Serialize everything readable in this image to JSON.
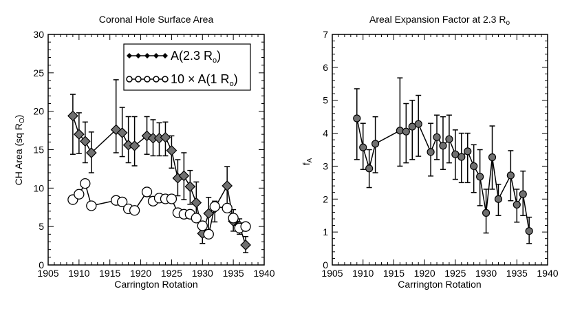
{
  "chart_data": [
    {
      "type": "line",
      "title": "Coronal Hole Surface Area",
      "xlabel": "Carrington Rotation",
      "ylabel_main": "CH Area (sq R",
      "ylabel_sub": "O",
      "ylabel_tail": ")",
      "xlim": [
        1905,
        1940
      ],
      "ylim": [
        0,
        30
      ],
      "xticks": [
        "1905",
        "1910",
        "1915",
        "1920",
        "1925",
        "1930",
        "1935",
        "1940"
      ],
      "yticks": [
        "0",
        "5",
        "10",
        "15",
        "20",
        "25",
        "30"
      ],
      "legend": {
        "position": "top-right",
        "entries": [
          {
            "main": "A(2.3 R",
            "sub": "o",
            "tail": ")"
          },
          {
            "main": "10 × A(1 R",
            "sub": "o",
            "tail": ")"
          }
        ]
      },
      "series": [
        {
          "name": "A(2.3 Ro)",
          "marker": "diamond",
          "points": [
            {
              "x": 1909,
              "y": 19.4,
              "lo": 14.4,
              "hi": 22.2
            },
            {
              "x": 1910,
              "y": 17.0,
              "lo": 14.5,
              "hi": 19.8
            },
            {
              "x": 1911,
              "y": 16.1,
              "lo": 13.3,
              "hi": 18.6
            },
            {
              "x": 1912,
              "y": 14.6,
              "lo": 12.0,
              "hi": 17.3
            },
            {
              "x": 1916,
              "y": 17.6,
              "lo": 14.6,
              "hi": 24.1
            },
            {
              "x": 1917,
              "y": 17.2,
              "lo": 14.1,
              "hi": 20.5
            },
            {
              "x": 1918,
              "y": 15.6,
              "lo": 13.3,
              "hi": 19.3
            },
            {
              "x": 1919,
              "y": 15.5,
              "lo": 12.9,
              "hi": 19.3
            },
            {
              "x": 1921,
              "y": 16.8,
              "lo": 14.4,
              "hi": 19.3
            },
            {
              "x": 1922,
              "y": 16.5,
              "lo": 14.2,
              "hi": 18.9
            },
            {
              "x": 1923,
              "y": 16.5,
              "lo": 14.2,
              "hi": 18.5
            },
            {
              "x": 1924,
              "y": 16.6,
              "lo": 14.2,
              "hi": 18.6
            },
            {
              "x": 1925,
              "y": 14.9,
              "lo": 12.6,
              "hi": 16.8
            },
            {
              "x": 1926,
              "y": 11.3,
              "lo": 9.0,
              "hi": 13.7
            },
            {
              "x": 1927,
              "y": 11.6,
              "lo": 8.5,
              "hi": 14.6
            },
            {
              "x": 1928,
              "y": 10.2,
              "lo": 7.9,
              "hi": 12.3
            },
            {
              "x": 1929,
              "y": 8.1,
              "lo": 5.6,
              "hi": 10.8
            },
            {
              "x": 1930,
              "y": 4.1,
              "lo": 2.8,
              "hi": 5.3
            },
            {
              "x": 1931,
              "y": 6.7,
              "lo": 4.2,
              "hi": 8.8
            },
            {
              "x": 1932,
              "y": 7.4,
              "lo": 5.6,
              "hi": 8.3
            },
            {
              "x": 1934,
              "y": 10.3,
              "lo": 7.9,
              "hi": 12.8
            },
            {
              "x": 1935,
              "y": 5.7,
              "lo": 4.4,
              "hi": 7.2
            },
            {
              "x": 1936,
              "y": 5.1,
              "lo": 4.0,
              "hi": 6.0
            },
            {
              "x": 1937,
              "y": 2.6,
              "lo": 1.6,
              "hi": 3.7
            }
          ]
        },
        {
          "name": "10 × A(1 Ro)",
          "marker": "circle",
          "points": [
            {
              "x": 1909,
              "y": 8.5
            },
            {
              "x": 1910,
              "y": 9.2
            },
            {
              "x": 1911,
              "y": 10.6
            },
            {
              "x": 1912,
              "y": 7.7
            },
            {
              "x": 1916,
              "y": 8.4
            },
            {
              "x": 1917,
              "y": 8.2
            },
            {
              "x": 1918,
              "y": 7.3
            },
            {
              "x": 1919,
              "y": 7.1
            },
            {
              "x": 1921,
              "y": 9.5
            },
            {
              "x": 1922,
              "y": 8.3
            },
            {
              "x": 1923,
              "y": 8.7
            },
            {
              "x": 1924,
              "y": 8.6
            },
            {
              "x": 1925,
              "y": 8.6
            },
            {
              "x": 1926,
              "y": 6.8
            },
            {
              "x": 1927,
              "y": 6.6
            },
            {
              "x": 1928,
              "y": 6.6
            },
            {
              "x": 1929,
              "y": 6.1
            },
            {
              "x": 1930,
              "y": 5.1
            },
            {
              "x": 1931,
              "y": 4.0
            },
            {
              "x": 1932,
              "y": 7.6
            },
            {
              "x": 1934,
              "y": 7.4
            },
            {
              "x": 1935,
              "y": 6.1
            },
            {
              "x": 1936,
              "y": 4.8
            },
            {
              "x": 1937,
              "y": 5.0
            }
          ]
        }
      ]
    },
    {
      "type": "line",
      "title_main": "Areal Expansion Factor at 2.3 R",
      "title_sub": "o",
      "xlabel": "Carrington Rotation",
      "ylabel_main": "f",
      "ylabel_sub": "A",
      "xlim": [
        1905,
        1940
      ],
      "ylim": [
        0,
        7
      ],
      "xticks": [
        "1905",
        "1910",
        "1915",
        "1920",
        "1925",
        "1930",
        "1935",
        "1940"
      ],
      "yticks": [
        "0",
        "1",
        "2",
        "3",
        "4",
        "5",
        "6",
        "7"
      ],
      "series": [
        {
          "name": "f_A",
          "marker": "circle-filled",
          "points": [
            {
              "x": 1909,
              "y": 4.45,
              "lo": 3.2,
              "hi": 5.35
            },
            {
              "x": 1910,
              "y": 3.57,
              "lo": 2.9,
              "hi": 4.3
            },
            {
              "x": 1911,
              "y": 2.93,
              "lo": 2.35,
              "hi": 3.5
            },
            {
              "x": 1912,
              "y": 3.68,
              "lo": 2.8,
              "hi": 4.5
            },
            {
              "x": 1916,
              "y": 4.08,
              "lo": 3.0,
              "hi": 5.68
            },
            {
              "x": 1917,
              "y": 4.05,
              "lo": 3.1,
              "hi": 4.9
            },
            {
              "x": 1918,
              "y": 4.2,
              "lo": 3.2,
              "hi": 5.0
            },
            {
              "x": 1919,
              "y": 4.28,
              "lo": 3.3,
              "hi": 5.15
            },
            {
              "x": 1921,
              "y": 3.43,
              "lo": 2.7,
              "hi": 4.3
            },
            {
              "x": 1922,
              "y": 3.88,
              "lo": 3.2,
              "hi": 4.55
            },
            {
              "x": 1923,
              "y": 3.62,
              "lo": 2.9,
              "hi": 4.5
            },
            {
              "x": 1924,
              "y": 3.82,
              "lo": 3.1,
              "hi": 4.55
            },
            {
              "x": 1925,
              "y": 3.36,
              "lo": 2.6,
              "hi": 4.1
            },
            {
              "x": 1926,
              "y": 3.28,
              "lo": 2.5,
              "hi": 4.0
            },
            {
              "x": 1927,
              "y": 3.45,
              "lo": 2.5,
              "hi": 4.0
            },
            {
              "x": 1928,
              "y": 3.0,
              "lo": 2.2,
              "hi": 3.65
            },
            {
              "x": 1929,
              "y": 2.68,
              "lo": 1.8,
              "hi": 3.5
            },
            {
              "x": 1930,
              "y": 1.58,
              "lo": 0.97,
              "hi": 2.3
            },
            {
              "x": 1931,
              "y": 3.27,
              "lo": 2.3,
              "hi": 4.22
            },
            {
              "x": 1932,
              "y": 2.0,
              "lo": 1.5,
              "hi": 2.45
            },
            {
              "x": 1934,
              "y": 2.72,
              "lo": 1.95,
              "hi": 3.47
            },
            {
              "x": 1935,
              "y": 1.83,
              "lo": 1.3,
              "hi": 2.3
            },
            {
              "x": 1936,
              "y": 2.15,
              "lo": 1.5,
              "hi": 2.85
            },
            {
              "x": 1937,
              "y": 1.03,
              "lo": 0.65,
              "hi": 1.45
            }
          ]
        }
      ]
    }
  ]
}
